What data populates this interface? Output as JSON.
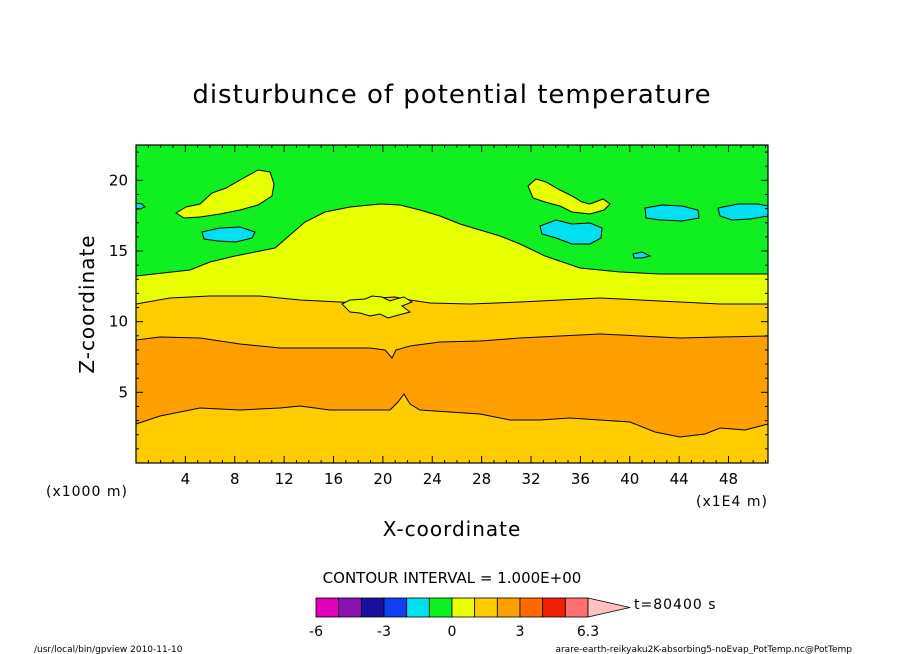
{
  "chart_data": {
    "type": "heatmap",
    "title": "disturbunce of potential temperature",
    "xlabel": "X-coordinate",
    "ylabel": "Z-coordinate",
    "x_unit_left": "(x1000 m)",
    "x_unit_right": "(x1E4 m)",
    "xlim": [
      0,
      51.2
    ],
    "ylim": [
      0,
      22.5
    ],
    "x_ticks": [
      4,
      8,
      12,
      16,
      20,
      24,
      28,
      32,
      36,
      40,
      44,
      48
    ],
    "y_ticks": [
      5,
      10,
      15,
      20
    ],
    "contour_interval_text": "CONTOUR INTERVAL = 1.000E+00",
    "time_label": "t=80400 s",
    "colorbar": {
      "levels": [
        -6,
        -5,
        -4,
        -3,
        -2,
        -1,
        0,
        1,
        2,
        3,
        4,
        5,
        6
      ],
      "tick_labels": [
        "-6",
        "-3",
        "0",
        "3",
        "6.3"
      ],
      "colors": [
        "#e000b8",
        "#8a10b0",
        "#1a10a0",
        "#1040f0",
        "#00e0f0",
        "#10f020",
        "#e8ff00",
        "#ffcc00",
        "#ffa000",
        "#ff6a00",
        "#f02000",
        "#ff7070"
      ],
      "extend_color": "#ffc0c0"
    },
    "regions": [
      {
        "value": 0.5,
        "description_value": "green background, z > ~13.5"
      },
      {
        "value": 1.5,
        "z_base": 11.5,
        "z_top_edges": 13.5,
        "z_top_center": 18.6
      },
      {
        "value": 2.5,
        "z_base": 9.0,
        "z_top": 11.5
      },
      {
        "value": 3.5,
        "z_base": 3.5,
        "z_top": 9.0
      },
      {
        "value": 2.5,
        "z_base": 0,
        "z_top": 3.5,
        "peak_at_x": 22,
        "peak_z": 5.0
      }
    ],
    "cells": [
      {
        "value": 1.5,
        "x": [
          4,
          11
        ],
        "z": [
          18.2,
          20.2
        ]
      },
      {
        "value": -0.5,
        "x": [
          5.5,
          9.5
        ],
        "z": [
          16.3,
          17.0
        ]
      },
      {
        "value": 1.5,
        "x": [
          32,
          37.5
        ],
        "z": [
          18.5,
          20.2
        ]
      },
      {
        "value": -0.5,
        "x": [
          32.5,
          37
        ],
        "z": [
          15.9,
          17.0
        ]
      },
      {
        "value": -0.5,
        "x": [
          41,
          46
        ],
        "z": [
          17.3,
          18.4
        ]
      },
      {
        "value": -0.5,
        "x": [
          47,
          51.2
        ],
        "z": [
          17.3,
          18.4
        ]
      },
      {
        "value": -0.5,
        "x": [
          40.5,
          42
        ],
        "z": [
          14.8,
          15.2
        ]
      },
      {
        "value": -0.5,
        "x": [
          0,
          0.8
        ],
        "z": [
          18.2,
          18.6
        ]
      }
    ]
  },
  "footer": {
    "left": "/usr/local/bin/gpview  2010-11-10",
    "right": "arare-earth-reikyaku2K-absorbing5-noEvap_PotTemp.nc@PotTemp"
  },
  "colors": {
    "green": "#10f020",
    "yellow": "#e8ff00",
    "light_orange": "#ffcc00",
    "orange": "#ffa000",
    "cyan": "#00e0f0"
  }
}
